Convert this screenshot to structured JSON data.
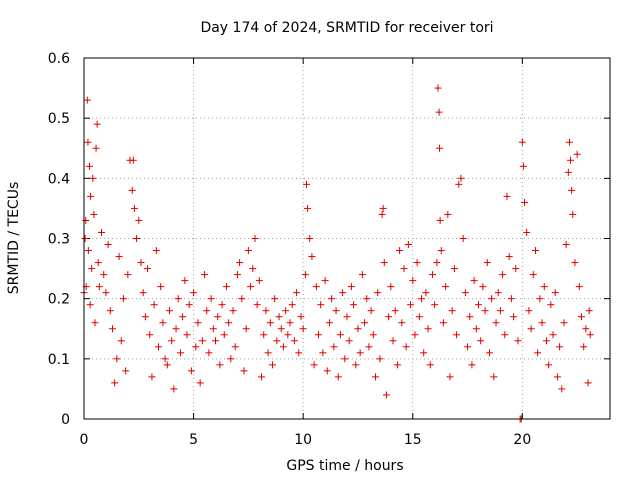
{
  "chart_data": {
    "type": "scatter",
    "title": "Day 174 of 2024, SRMTID for receiver tori",
    "xlabel": "GPS time / hours",
    "ylabel": "SRMTID / TECUs",
    "xlim": [
      0,
      24
    ],
    "ylim": [
      0,
      0.6
    ],
    "xticks": [
      0,
      5,
      10,
      15,
      20
    ],
    "yticks": [
      0,
      0.1,
      0.2,
      0.3,
      0.4,
      0.5,
      0.6
    ],
    "xtick_labels": [
      "0",
      "5",
      "10",
      "15",
      "20"
    ],
    "ytick_labels": [
      "0",
      "0.1",
      "0.2",
      "0.3",
      "0.4",
      "0.5",
      "0.6"
    ],
    "grid": true,
    "marker": "+",
    "color": "#e00000",
    "series": [
      {
        "name": "SRMTID",
        "points": [
          [
            0.0,
            0.21
          ],
          [
            0.05,
            0.3
          ],
          [
            0.08,
            0.33
          ],
          [
            0.1,
            0.22
          ],
          [
            0.15,
            0.53
          ],
          [
            0.18,
            0.46
          ],
          [
            0.2,
            0.28
          ],
          [
            0.25,
            0.42
          ],
          [
            0.28,
            0.19
          ],
          [
            0.3,
            0.37
          ],
          [
            0.35,
            0.25
          ],
          [
            0.4,
            0.4
          ],
          [
            0.45,
            0.34
          ],
          [
            0.5,
            0.16
          ],
          [
            0.55,
            0.45
          ],
          [
            0.6,
            0.49
          ],
          [
            0.65,
            0.26
          ],
          [
            0.7,
            0.22
          ],
          [
            0.8,
            0.31
          ],
          [
            0.9,
            0.24
          ],
          [
            1.0,
            0.21
          ],
          [
            1.1,
            0.29
          ],
          [
            1.2,
            0.18
          ],
          [
            1.3,
            0.15
          ],
          [
            1.4,
            0.06
          ],
          [
            1.5,
            0.1
          ],
          [
            1.6,
            0.27
          ],
          [
            1.7,
            0.13
          ],
          [
            1.8,
            0.2
          ],
          [
            1.9,
            0.08
          ],
          [
            2.0,
            0.24
          ],
          [
            2.1,
            0.43
          ],
          [
            2.2,
            0.38
          ],
          [
            2.25,
            0.43
          ],
          [
            2.3,
            0.35
          ],
          [
            2.4,
            0.3
          ],
          [
            2.5,
            0.33
          ],
          [
            2.6,
            0.26
          ],
          [
            2.7,
            0.21
          ],
          [
            2.8,
            0.17
          ],
          [
            2.9,
            0.25
          ],
          [
            3.0,
            0.14
          ],
          [
            3.1,
            0.07
          ],
          [
            3.2,
            0.19
          ],
          [
            3.3,
            0.28
          ],
          [
            3.4,
            0.12
          ],
          [
            3.5,
            0.22
          ],
          [
            3.6,
            0.16
          ],
          [
            3.7,
            0.1
          ],
          [
            3.8,
            0.09
          ],
          [
            3.9,
            0.18
          ],
          [
            4.0,
            0.13
          ],
          [
            4.1,
            0.05
          ],
          [
            4.2,
            0.15
          ],
          [
            4.3,
            0.2
          ],
          [
            4.4,
            0.11
          ],
          [
            4.5,
            0.17
          ],
          [
            4.6,
            0.23
          ],
          [
            4.7,
            0.14
          ],
          [
            4.8,
            0.19
          ],
          [
            4.9,
            0.08
          ],
          [
            5.0,
            0.21
          ],
          [
            5.1,
            0.12
          ],
          [
            5.2,
            0.16
          ],
          [
            5.3,
            0.06
          ],
          [
            5.4,
            0.13
          ],
          [
            5.5,
            0.24
          ],
          [
            5.6,
            0.18
          ],
          [
            5.7,
            0.11
          ],
          [
            5.8,
            0.2
          ],
          [
            5.9,
            0.15
          ],
          [
            6.0,
            0.13
          ],
          [
            6.1,
            0.17
          ],
          [
            6.2,
            0.09
          ],
          [
            6.3,
            0.19
          ],
          [
            6.4,
            0.14
          ],
          [
            6.5,
            0.22
          ],
          [
            6.6,
            0.16
          ],
          [
            6.7,
            0.1
          ],
          [
            6.8,
            0.18
          ],
          [
            6.9,
            0.12
          ],
          [
            7.0,
            0.24
          ],
          [
            7.1,
            0.26
          ],
          [
            7.2,
            0.2
          ],
          [
            7.3,
            0.08
          ],
          [
            7.4,
            0.15
          ],
          [
            7.5,
            0.28
          ],
          [
            7.6,
            0.22
          ],
          [
            7.7,
            0.25
          ],
          [
            7.8,
            0.3
          ],
          [
            7.9,
            0.19
          ],
          [
            8.0,
            0.23
          ],
          [
            8.1,
            0.07
          ],
          [
            8.2,
            0.14
          ],
          [
            8.3,
            0.18
          ],
          [
            8.4,
            0.11
          ],
          [
            8.5,
            0.16
          ],
          [
            8.6,
            0.09
          ],
          [
            8.7,
            0.2
          ],
          [
            8.8,
            0.13
          ],
          [
            8.9,
            0.17
          ],
          [
            9.0,
            0.15
          ],
          [
            9.1,
            0.12
          ],
          [
            9.2,
            0.18
          ],
          [
            9.3,
            0.14
          ],
          [
            9.4,
            0.16
          ],
          [
            9.5,
            0.19
          ],
          [
            9.6,
            0.13
          ],
          [
            9.7,
            0.21
          ],
          [
            9.8,
            0.11
          ],
          [
            9.9,
            0.17
          ],
          [
            10.0,
            0.15
          ],
          [
            10.1,
            0.24
          ],
          [
            10.15,
            0.39
          ],
          [
            10.2,
            0.35
          ],
          [
            10.3,
            0.3
          ],
          [
            10.4,
            0.27
          ],
          [
            10.5,
            0.09
          ],
          [
            10.6,
            0.22
          ],
          [
            10.7,
            0.14
          ],
          [
            10.8,
            0.19
          ],
          [
            10.9,
            0.11
          ],
          [
            11.0,
            0.23
          ],
          [
            11.1,
            0.08
          ],
          [
            11.2,
            0.16
          ],
          [
            11.3,
            0.2
          ],
          [
            11.4,
            0.12
          ],
          [
            11.5,
            0.18
          ],
          [
            11.6,
            0.07
          ],
          [
            11.7,
            0.14
          ],
          [
            11.8,
            0.21
          ],
          [
            11.9,
            0.1
          ],
          [
            12.0,
            0.17
          ],
          [
            12.1,
            0.13
          ],
          [
            12.2,
            0.22
          ],
          [
            12.3,
            0.19
          ],
          [
            12.4,
            0.09
          ],
          [
            12.5,
            0.15
          ],
          [
            12.6,
            0.11
          ],
          [
            12.7,
            0.24
          ],
          [
            12.8,
            0.16
          ],
          [
            12.9,
            0.2
          ],
          [
            13.0,
            0.12
          ],
          [
            13.1,
            0.18
          ],
          [
            13.2,
            0.14
          ],
          [
            13.3,
            0.07
          ],
          [
            13.4,
            0.21
          ],
          [
            13.5,
            0.1
          ],
          [
            13.6,
            0.34
          ],
          [
            13.65,
            0.35
          ],
          [
            13.7,
            0.26
          ],
          [
            13.8,
            0.04
          ],
          [
            13.9,
            0.17
          ],
          [
            14.0,
            0.22
          ],
          [
            14.1,
            0.13
          ],
          [
            14.2,
            0.18
          ],
          [
            14.3,
            0.09
          ],
          [
            14.4,
            0.28
          ],
          [
            14.5,
            0.16
          ],
          [
            14.6,
            0.25
          ],
          [
            14.7,
            0.12
          ],
          [
            14.8,
            0.29
          ],
          [
            14.9,
            0.19
          ],
          [
            15.0,
            0.23
          ],
          [
            15.1,
            0.14
          ],
          [
            15.2,
            0.26
          ],
          [
            15.3,
            0.17
          ],
          [
            15.4,
            0.2
          ],
          [
            15.5,
            0.11
          ],
          [
            15.6,
            0.21
          ],
          [
            15.7,
            0.15
          ],
          [
            15.8,
            0.09
          ],
          [
            15.9,
            0.24
          ],
          [
            16.0,
            0.19
          ],
          [
            16.1,
            0.26
          ],
          [
            16.15,
            0.55
          ],
          [
            16.2,
            0.51
          ],
          [
            16.22,
            0.45
          ],
          [
            16.25,
            0.33
          ],
          [
            16.3,
            0.28
          ],
          [
            16.4,
            0.16
          ],
          [
            16.5,
            0.22
          ],
          [
            16.6,
            0.34
          ],
          [
            16.7,
            0.07
          ],
          [
            16.8,
            0.18
          ],
          [
            16.9,
            0.25
          ],
          [
            17.0,
            0.14
          ],
          [
            17.1,
            0.39
          ],
          [
            17.2,
            0.4
          ],
          [
            17.3,
            0.3
          ],
          [
            17.4,
            0.21
          ],
          [
            17.5,
            0.12
          ],
          [
            17.6,
            0.17
          ],
          [
            17.7,
            0.09
          ],
          [
            17.8,
            0.23
          ],
          [
            17.9,
            0.15
          ],
          [
            18.0,
            0.19
          ],
          [
            18.1,
            0.13
          ],
          [
            18.2,
            0.22
          ],
          [
            18.3,
            0.18
          ],
          [
            18.4,
            0.26
          ],
          [
            18.5,
            0.11
          ],
          [
            18.6,
            0.2
          ],
          [
            18.7,
            0.07
          ],
          [
            18.8,
            0.16
          ],
          [
            18.9,
            0.21
          ],
          [
            19.0,
            0.18
          ],
          [
            19.1,
            0.24
          ],
          [
            19.2,
            0.14
          ],
          [
            19.3,
            0.37
          ],
          [
            19.4,
            0.27
          ],
          [
            19.5,
            0.2
          ],
          [
            19.6,
            0.17
          ],
          [
            19.7,
            0.25
          ],
          [
            19.8,
            0.13
          ],
          [
            19.9,
            0.0
          ],
          [
            19.95,
            0.0
          ],
          [
            20.0,
            0.46
          ],
          [
            20.05,
            0.42
          ],
          [
            20.1,
            0.36
          ],
          [
            20.2,
            0.31
          ],
          [
            20.3,
            0.18
          ],
          [
            20.4,
            0.15
          ],
          [
            20.5,
            0.24
          ],
          [
            20.6,
            0.28
          ],
          [
            20.7,
            0.11
          ],
          [
            20.8,
            0.2
          ],
          [
            20.9,
            0.16
          ],
          [
            21.0,
            0.22
          ],
          [
            21.1,
            0.13
          ],
          [
            21.2,
            0.09
          ],
          [
            21.3,
            0.19
          ],
          [
            21.4,
            0.14
          ],
          [
            21.5,
            0.21
          ],
          [
            21.6,
            0.07
          ],
          [
            21.7,
            0.12
          ],
          [
            21.8,
            0.05
          ],
          [
            21.9,
            0.16
          ],
          [
            22.0,
            0.29
          ],
          [
            22.1,
            0.41
          ],
          [
            22.15,
            0.46
          ],
          [
            22.2,
            0.43
          ],
          [
            22.25,
            0.38
          ],
          [
            22.3,
            0.34
          ],
          [
            22.4,
            0.26
          ],
          [
            22.5,
            0.44
          ],
          [
            22.6,
            0.22
          ],
          [
            22.7,
            0.17
          ],
          [
            22.8,
            0.12
          ],
          [
            22.9,
            0.15
          ],
          [
            23.0,
            0.06
          ],
          [
            23.05,
            0.18
          ],
          [
            23.1,
            0.14
          ]
        ]
      }
    ]
  }
}
